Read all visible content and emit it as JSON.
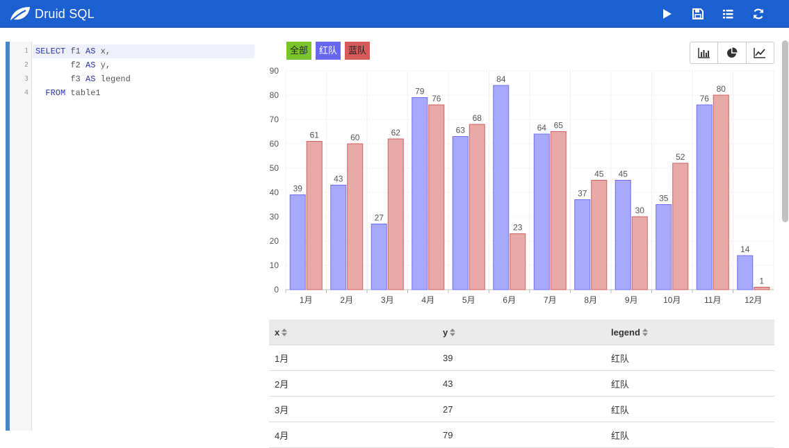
{
  "app": {
    "title": "Druid SQL"
  },
  "navbar": {
    "icons": [
      "play-icon",
      "save-icon",
      "list-icon",
      "refresh-icon"
    ]
  },
  "editor": {
    "line_numbers": [
      "1",
      "2",
      "3",
      "4"
    ],
    "lines": [
      {
        "kw1": "SELECT",
        "t1": " f1 ",
        "kw2": "AS",
        "t2": " x,"
      },
      {
        "kw1": "",
        "t1": "       f2 ",
        "kw2": "AS",
        "t2": " y,"
      },
      {
        "kw1": "",
        "t1": "       f3 ",
        "kw2": "AS",
        "t2": " legend"
      },
      {
        "kw1": "  FROM",
        "t1": " table1",
        "kw2": "",
        "t2": ""
      }
    ]
  },
  "legend_filters": {
    "all": "全部",
    "red": "红队",
    "blue": "蓝队"
  },
  "chart_toolbar": {
    "icons": [
      "bar-chart-icon",
      "pie-chart-icon",
      "line-chart-icon"
    ]
  },
  "chart_data": {
    "type": "bar",
    "title": "",
    "xlabel": "",
    "ylabel": "",
    "ylim": [
      0,
      90
    ],
    "yticks": [
      0,
      10,
      20,
      30,
      40,
      50,
      60,
      70,
      80,
      90
    ],
    "grid": true,
    "categories": [
      "1月",
      "2月",
      "3月",
      "4月",
      "5月",
      "6月",
      "7月",
      "8月",
      "9月",
      "10月",
      "11月",
      "12月"
    ],
    "series": [
      {
        "name": "红队",
        "color": "#a9a9fb",
        "stroke": "#6e6ef2",
        "values": [
          39,
          43,
          27,
          79,
          63,
          84,
          64,
          37,
          45,
          35,
          76,
          14
        ]
      },
      {
        "name": "蓝队",
        "color": "#e8a9a9",
        "stroke": "#d06060",
        "values": [
          61,
          60,
          62,
          76,
          68,
          23,
          65,
          45,
          30,
          52,
          80,
          1
        ]
      }
    ]
  },
  "table": {
    "headers": [
      "x",
      "y",
      "legend"
    ],
    "rows": [
      [
        "1月",
        "39",
        "红队"
      ],
      [
        "2月",
        "43",
        "红队"
      ],
      [
        "3月",
        "27",
        "红队"
      ],
      [
        "4月",
        "79",
        "红队"
      ]
    ]
  },
  "colors": {
    "navbar": "#1b5fd0",
    "chip_all": "#7ac52b",
    "chip_red": "#6767f0",
    "chip_blue": "#d65a5a"
  }
}
